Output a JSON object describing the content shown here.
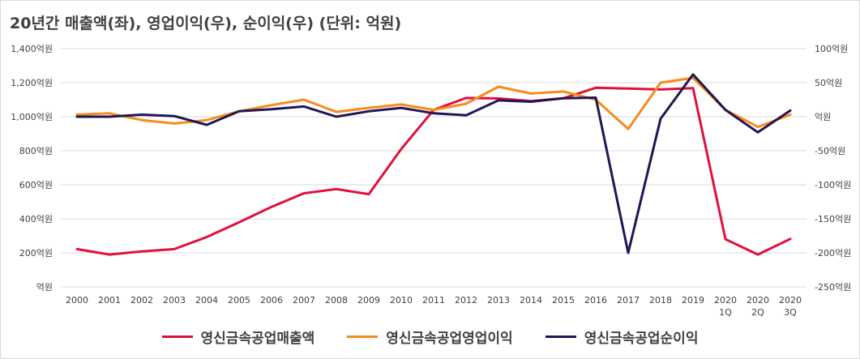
{
  "chart_data": {
    "type": "line",
    "title": "20년간 매출액(좌), 영업이익(우), 순이익(우) (단위: 억원)",
    "categories": [
      "2000",
      "2001",
      "2002",
      "2003",
      "2004",
      "2005",
      "2006",
      "2007",
      "2008",
      "2009",
      "2010",
      "2011",
      "2012",
      "2013",
      "2014",
      "2015",
      "2016",
      "2017",
      "2018",
      "2019",
      "2020\n1Q",
      "2020\n2Q",
      "2020\n3Q"
    ],
    "left_axis": {
      "ylim": [
        0,
        1400
      ],
      "ticks": [
        0,
        200,
        400,
        600,
        800,
        1000,
        1200,
        1400
      ],
      "tick_labels": [
        "억원",
        "200억원",
        "400억원",
        "600억원",
        "800억원",
        "1,000억원",
        "1,200억원",
        "1,400억원"
      ]
    },
    "right_axis": {
      "ylim": [
        -250,
        100
      ],
      "ticks": [
        -250,
        -200,
        -150,
        -100,
        -50,
        0,
        50,
        100
      ],
      "tick_labels": [
        "-250억원",
        "-200억원",
        "-150억원",
        "-100억원",
        "-50억원",
        "억원",
        "50억원",
        "100억원"
      ]
    },
    "grid": true,
    "legend_position": "bottom",
    "series": [
      {
        "name": "영신금속공업매출액",
        "axis": "left",
        "color": "#e0103c",
        "values": [
          222,
          190,
          208,
          222,
          293,
          380,
          470,
          550,
          575,
          545,
          810,
          1040,
          1110,
          1107,
          1092,
          1108,
          1170,
          1165,
          1160,
          1168,
          280,
          190,
          282
        ]
      },
      {
        "name": "영신금속공업영업이익",
        "axis": "right",
        "color": "#f68b1e",
        "values": [
          3,
          5,
          -5,
          -10,
          -5,
          8,
          17,
          25,
          7,
          13,
          18,
          10,
          19,
          44,
          34,
          37,
          25,
          -18,
          50,
          57,
          10,
          -15,
          3
        ]
      },
      {
        "name": "영신금속공업순이익",
        "axis": "right",
        "color": "#1f1654",
        "values": [
          0,
          0,
          3,
          1,
          -12,
          8,
          11,
          15,
          0,
          8,
          13,
          5,
          2,
          24,
          22,
          27,
          28,
          -200,
          -3,
          62,
          10,
          -23,
          9
        ]
      }
    ]
  }
}
